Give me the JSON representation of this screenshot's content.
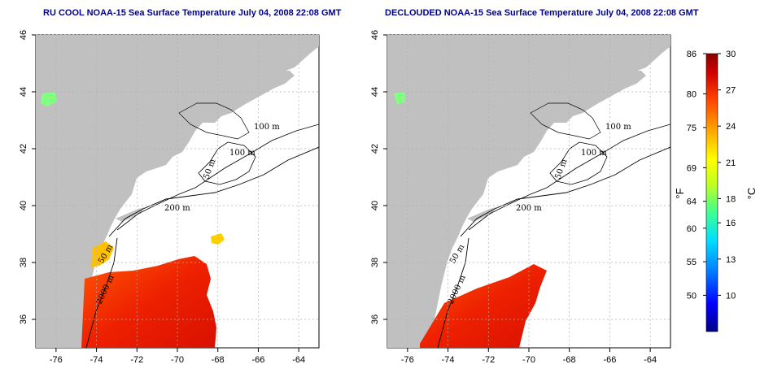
{
  "panels": [
    {
      "id": "left",
      "title": "RU COOL NOAA-15 Sea Surface Temperature July 04, 2008 22:08 GMT",
      "coverage": "partial"
    },
    {
      "id": "right",
      "title": "DECLOUDED NOAA-15 Sea Surface Temperature July 04, 2008 22:08 GMT",
      "coverage": "declouded"
    }
  ],
  "map": {
    "lon_range": [
      -77,
      -63
    ],
    "lat_range": [
      35,
      46
    ],
    "x_ticks": [
      "-76",
      "-74",
      "-72",
      "-70",
      "-68",
      "-66",
      "-64"
    ],
    "x_tick_values": [
      -76,
      -74,
      -72,
      -70,
      -68,
      -66,
      -64
    ],
    "y_ticks": [
      "36",
      "38",
      "40",
      "42",
      "44",
      "46"
    ],
    "y_tick_values": [
      36,
      38,
      40,
      42,
      44,
      46
    ],
    "grid": true,
    "land_color": "#c0c0c0",
    "ocean_color": "#ffffff",
    "contour_labels": [
      "100 m",
      "100 m",
      "50 m",
      "200 m",
      "50 m",
      "2000 m"
    ]
  },
  "colorbar": {
    "fahrenheit_ticks": [
      "86",
      "80",
      "75",
      "69",
      "64",
      "60",
      "55",
      "50"
    ],
    "fahrenheit_values": [
      86,
      80,
      75,
      69,
      64,
      60,
      55,
      50
    ],
    "celsius_ticks": [
      "30",
      "27",
      "24",
      "21",
      "18",
      "16",
      "13",
      "10"
    ],
    "celsius_values": [
      30,
      27,
      24,
      21,
      18,
      16,
      13,
      10
    ],
    "range_c": [
      7,
      30
    ],
    "fahrenheit_unit": "°F",
    "celsius_unit": "°C",
    "colors": [
      "#00008b",
      "#0000ff",
      "#0080ff",
      "#00e0ff",
      "#40ff90",
      "#c0ff20",
      "#ffff00",
      "#ffa000",
      "#ff4000",
      "#d00000",
      "#8b0000"
    ]
  }
}
